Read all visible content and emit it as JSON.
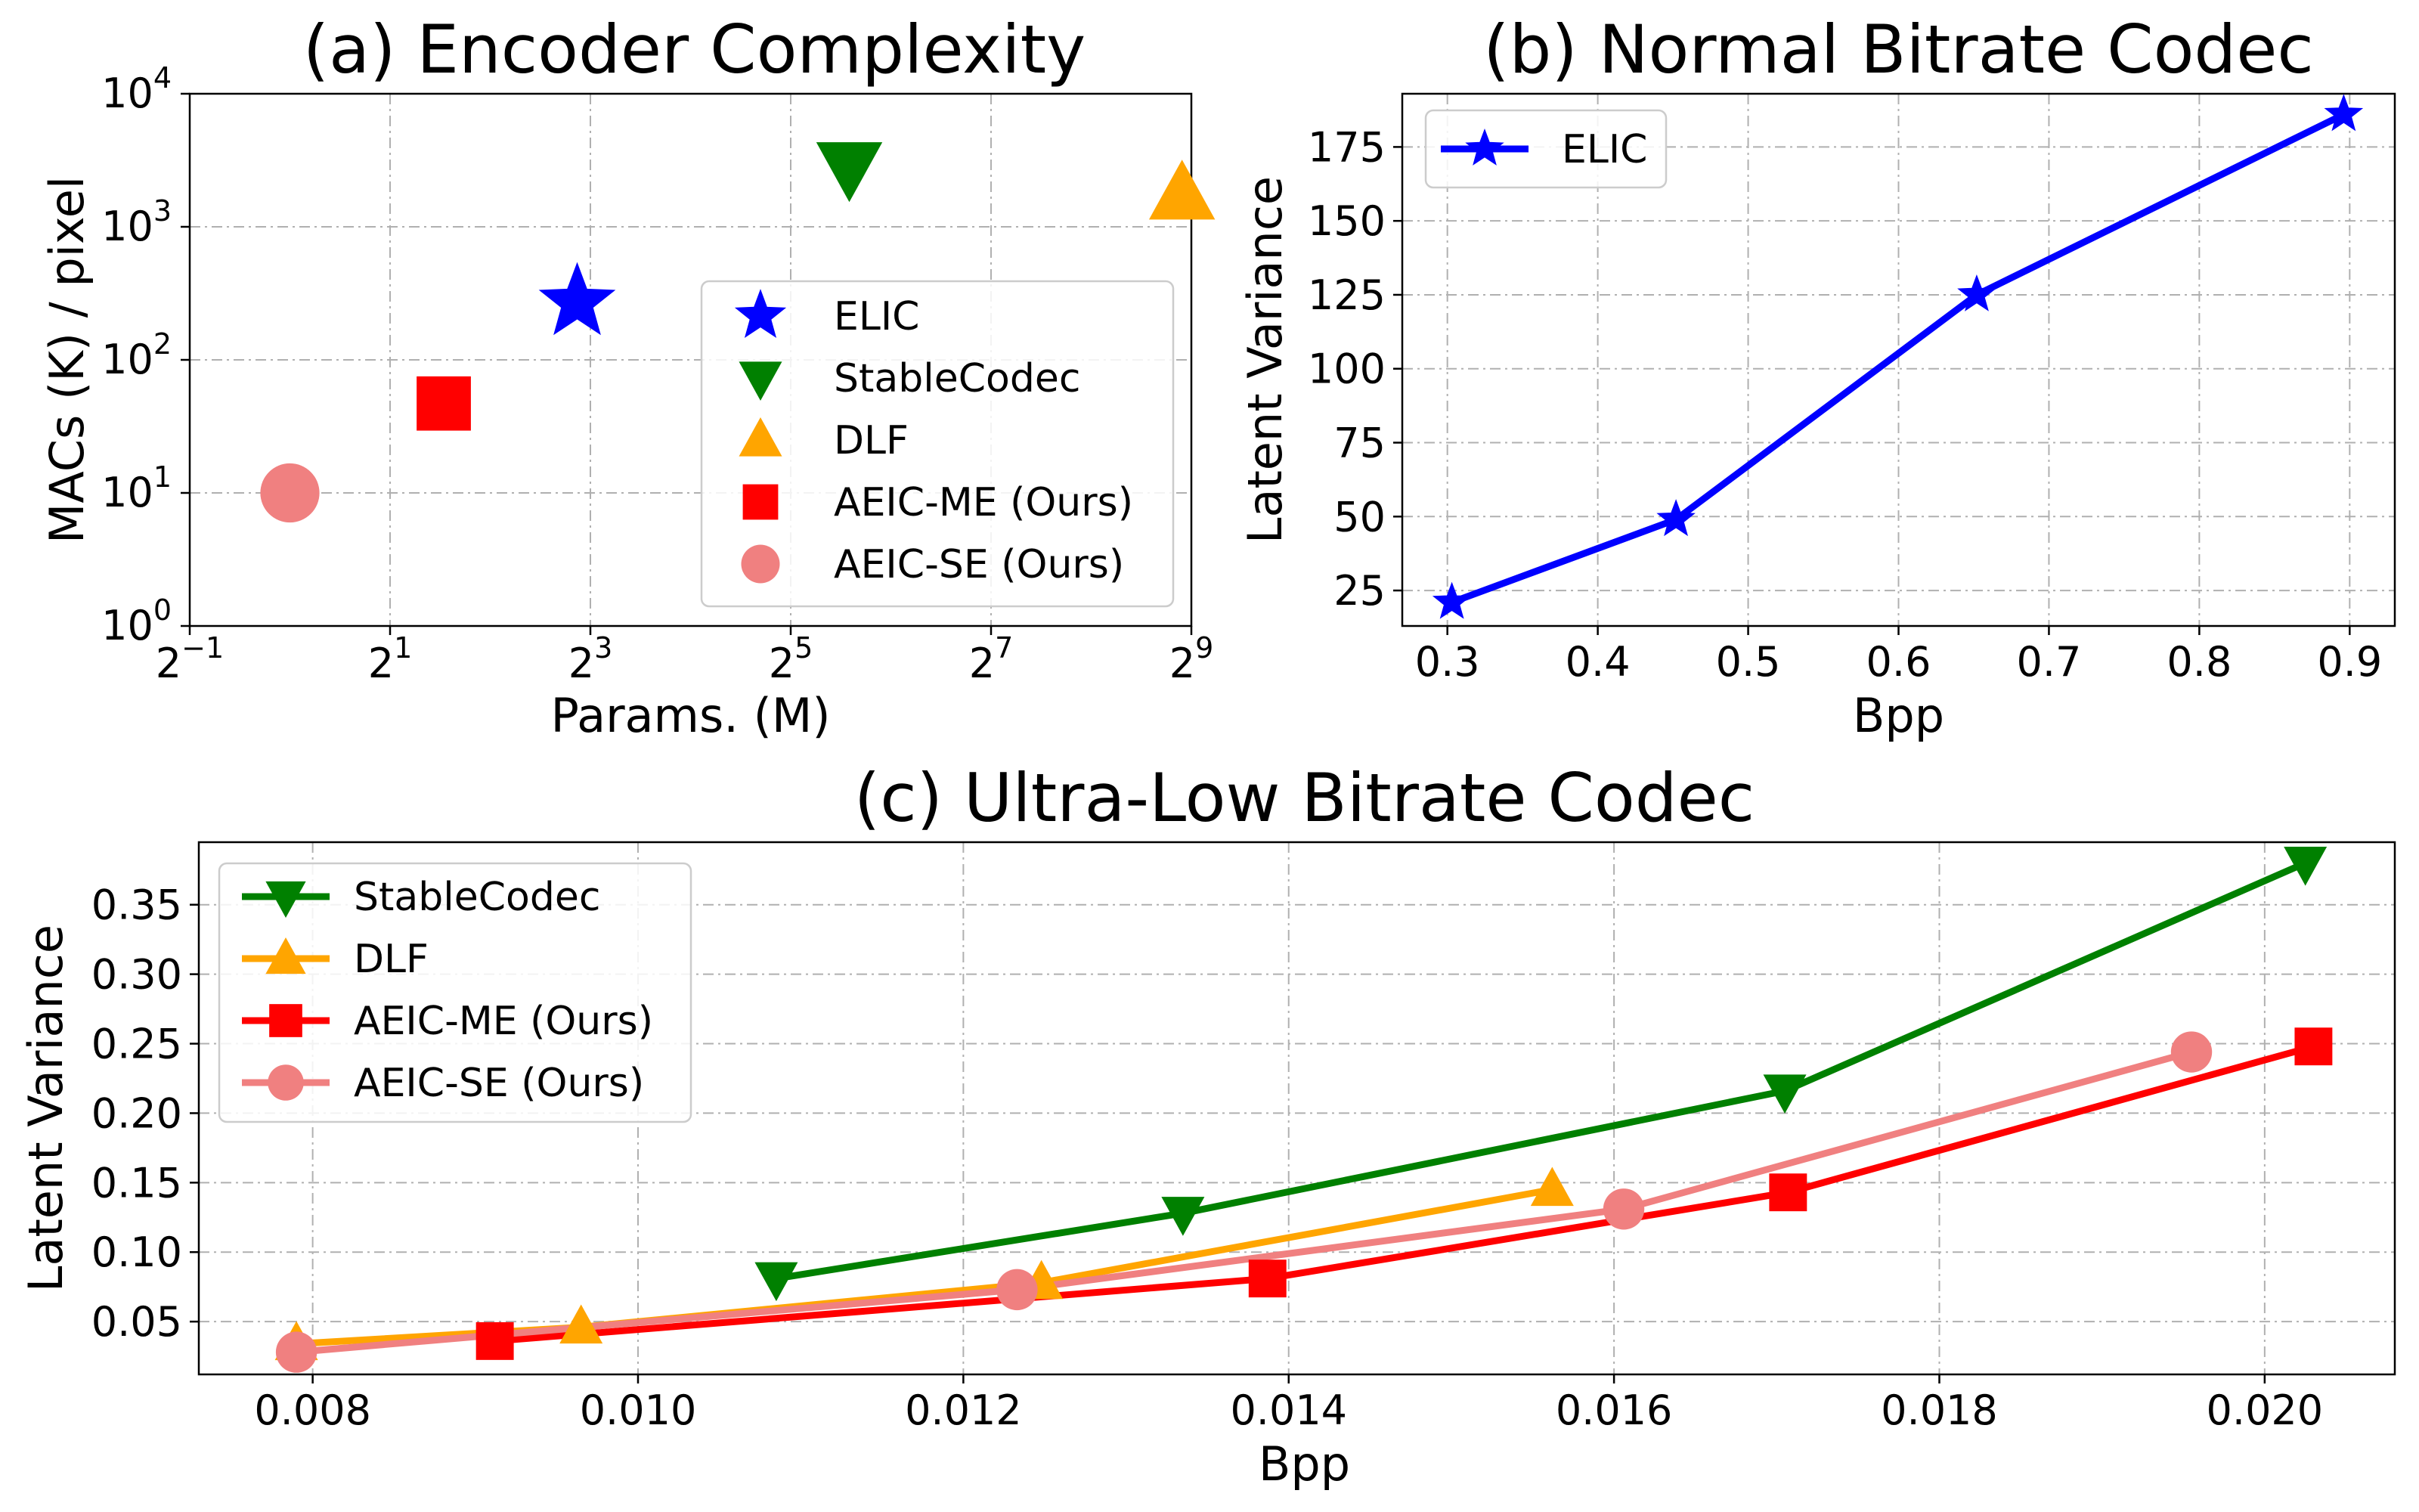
{
  "chart_data": [
    {
      "type": "scatter",
      "title": "(a) Encoder Complexity",
      "xlabel": "Params. (M)",
      "ylabel": "MACs (K) / pixel",
      "xscale": "log2",
      "yscale": "log10",
      "xlim_log2": [
        -1,
        9
      ],
      "ylim_log10": [
        0,
        4
      ],
      "xtick_exponents": [
        "−1",
        "1",
        "3",
        "5",
        "7",
        "9"
      ],
      "ytick_exponents": [
        "0",
        "1",
        "2",
        "3",
        "4"
      ],
      "xtick_base": "2",
      "ytick_base": "10",
      "grid": true,
      "legend_position": "center-right",
      "series": [
        {
          "name": "ELIC",
          "marker": "star",
          "color": "#0000ff",
          "params": 7.3,
          "macs": 270
        },
        {
          "name": "StableCodec",
          "marker": "triangle-down",
          "color": "#008000",
          "params": 48,
          "macs": 2800
        },
        {
          "name": "DLF",
          "marker": "triangle-up",
          "color": "#ffa500",
          "params": 480,
          "macs": 1750
        },
        {
          "name": "AEIC-ME (Ours)",
          "marker": "square",
          "color": "#ff0000",
          "params": 2.9,
          "macs": 47
        },
        {
          "name": "AEIC-SE (Ours)",
          "marker": "circle",
          "color": "#f08080",
          "params": 1.0,
          "macs": 10
        }
      ]
    },
    {
      "type": "line",
      "title": "(b) Normal Bitrate Codec",
      "xlabel": "Bpp",
      "ylabel": "Latent Variance",
      "xlim": [
        0.27,
        0.93
      ],
      "ylim": [
        13,
        193
      ],
      "xticks": [
        "0.3",
        "0.4",
        "0.5",
        "0.6",
        "0.7",
        "0.8",
        "0.9"
      ],
      "yticks": [
        "25",
        "50",
        "75",
        "100",
        "125",
        "150",
        "175"
      ],
      "grid": true,
      "legend_position": "top-left",
      "series": [
        {
          "name": "ELIC",
          "marker": "star",
          "color": "#0000ff",
          "x": [
            0.303,
            0.452,
            0.652,
            0.896
          ],
          "y": [
            21,
            49,
            125,
            186
          ]
        }
      ]
    },
    {
      "type": "line",
      "title": "(c) Ultra-Low Bitrate Codec",
      "xlabel": "Bpp",
      "ylabel": "Latent Variance",
      "xlim": [
        0.0073,
        0.0208
      ],
      "ylim": [
        0.012,
        0.395
      ],
      "xticks": [
        "0.008",
        "0.010",
        "0.012",
        "0.014",
        "0.016",
        "0.018",
        "0.020"
      ],
      "yticks": [
        "0.05",
        "0.10",
        "0.15",
        "0.20",
        "0.25",
        "0.30",
        "0.35"
      ],
      "grid": true,
      "legend_position": "top-left",
      "series": [
        {
          "name": "StableCodec",
          "marker": "triangle-down",
          "color": "#008000",
          "x": [
            0.01085,
            0.01335,
            0.01705,
            0.02025
          ],
          "y": [
            0.081,
            0.128,
            0.216,
            0.38
          ]
        },
        {
          "name": "DLF",
          "marker": "triangle-up",
          "color": "#ffa500",
          "x": [
            0.0079,
            0.00965,
            0.01248,
            0.01562
          ],
          "y": [
            0.034,
            0.046,
            0.078,
            0.145
          ]
        },
        {
          "name": "AEIC-ME (Ours)",
          "marker": "square",
          "color": "#ff0000",
          "x": [
            0.00912,
            0.01387,
            0.01707,
            0.0203
          ],
          "y": [
            0.036,
            0.081,
            0.143,
            0.248
          ]
        },
        {
          "name": "AEIC-SE (Ours)",
          "marker": "circle",
          "color": "#f08080",
          "x": [
            0.0079,
            0.01233,
            0.01606,
            0.01955
          ],
          "y": [
            0.028,
            0.073,
            0.131,
            0.244
          ]
        }
      ]
    }
  ]
}
